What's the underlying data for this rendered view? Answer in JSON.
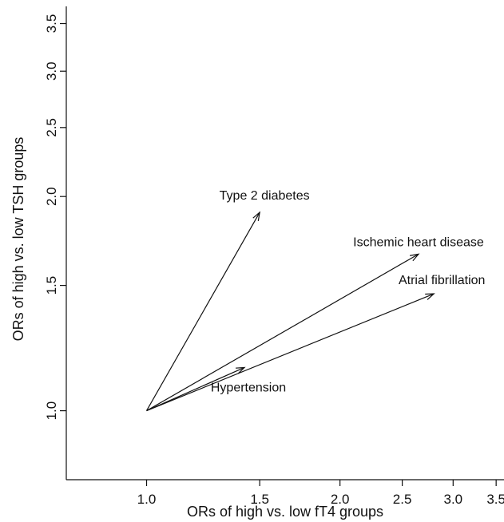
{
  "chart_data": {
    "type": "scatter",
    "scale": "log",
    "xlabel": "ORs of high vs. low fT4 groups",
    "ylabel": "ORs of high vs. low TSH groups",
    "xlim": [
      0.75,
      3.6
    ],
    "ylim": [
      0.8,
      3.7
    ],
    "x_ticks": [
      1.0,
      1.5,
      2.0,
      2.5,
      3.0,
      3.5
    ],
    "y_ticks": [
      1.0,
      1.5,
      2.0,
      2.5,
      3.0,
      3.5
    ],
    "x_tick_labels": [
      "1.0",
      "1.5",
      "2.0",
      "2.5",
      "3.0",
      "3.5"
    ],
    "y_tick_labels": [
      "1.0",
      "1.5",
      "2.0",
      "2.5",
      "3.0",
      "3.5"
    ],
    "origin": {
      "x": 1.0,
      "y": 1.0
    },
    "points": [
      {
        "label": "Type 2 diabetes",
        "x": 1.5,
        "y": 1.9
      },
      {
        "label": "Ischemic heart disease",
        "x": 2.65,
        "y": 1.66
      },
      {
        "label": "Atrial fibrillation",
        "x": 2.8,
        "y": 1.46
      },
      {
        "label": "Hypertension",
        "x": 1.42,
        "y": 1.15
      }
    ]
  }
}
